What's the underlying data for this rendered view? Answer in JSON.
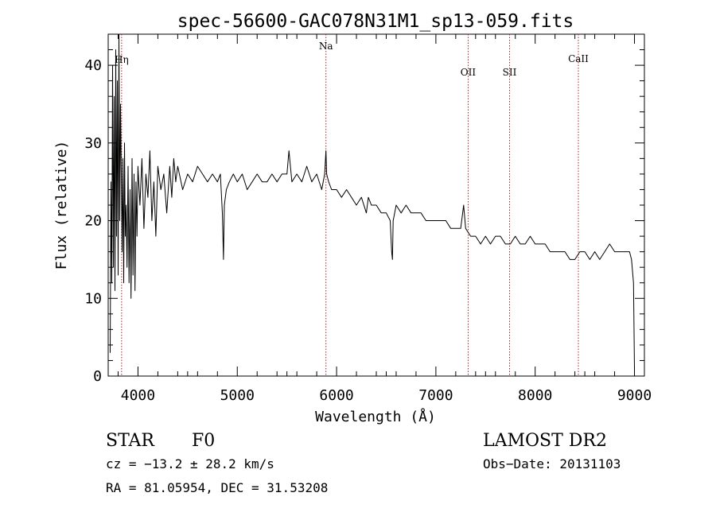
{
  "chart_data": {
    "type": "line",
    "title": "spec-56600-GAC078N31M1_sp13-059.fits",
    "xlabel": "Wavelength (Å)",
    "ylabel": "Flux (relative)",
    "xlim": [
      3700,
      9100
    ],
    "ylim": [
      0,
      44
    ],
    "x_ticks": [
      4000,
      5000,
      6000,
      7000,
      8000,
      9000
    ],
    "y_ticks": [
      0,
      10,
      20,
      30,
      40
    ],
    "grid": false,
    "line_color": "#000000",
    "marker_color": "#b22222",
    "lines": [
      {
        "label": "Hη",
        "x": 3835
      },
      {
        "label": "Na",
        "x": 5893
      },
      {
        "label": "OII",
        "x": 7325
      },
      {
        "label": "SII",
        "x": 7742
      },
      {
        "label": "CaII",
        "x": 8435
      }
    ],
    "series": [
      {
        "x": [
          3720,
          3728,
          3736,
          3744,
          3752,
          3760,
          3768,
          3776,
          3784,
          3792,
          3800,
          3808,
          3816,
          3824,
          3832,
          3840,
          3848,
          3856,
          3864,
          3872,
          3880,
          3890,
          3900,
          3910,
          3920,
          3930,
          3940,
          3950,
          3960,
          3970,
          3980,
          3990,
          4000,
          4020,
          4040,
          4060,
          4080,
          4100,
          4120,
          4140,
          4160,
          4180,
          4200,
          4230,
          4260,
          4290,
          4320,
          4340,
          4360,
          4380,
          4400,
          4450,
          4500,
          4550,
          4600,
          4650,
          4700,
          4750,
          4800,
          4830,
          4850,
          4861,
          4870,
          4890,
          4920,
          4960,
          5000,
          5050,
          5100,
          5150,
          5200,
          5250,
          5300,
          5350,
          5400,
          5450,
          5500,
          5520,
          5550,
          5600,
          5650,
          5700,
          5750,
          5800,
          5850,
          5880,
          5893,
          5900,
          5920,
          5950,
          6000,
          6050,
          6100,
          6150,
          6200,
          6250,
          6300,
          6320,
          6350,
          6400,
          6450,
          6500,
          6540,
          6555,
          6563,
          6570,
          6600,
          6650,
          6700,
          6750,
          6800,
          6850,
          6900,
          6950,
          7000,
          7050,
          7100,
          7150,
          7200,
          7250,
          7280,
          7300,
          7350,
          7400,
          7450,
          7500,
          7550,
          7600,
          7650,
          7700,
          7750,
          7800,
          7850,
          7900,
          7950,
          8000,
          8050,
          8100,
          8150,
          8200,
          8250,
          8300,
          8350,
          8400,
          8450,
          8500,
          8550,
          8600,
          8650,
          8700,
          8750,
          8800,
          8850,
          8900,
          8950,
          8970,
          8990,
          9000
        ],
        "y": [
          3,
          25,
          12,
          40,
          14,
          36,
          11,
          42,
          18,
          38,
          13,
          44,
          20,
          35,
          26,
          16,
          28,
          12,
          30,
          18,
          22,
          14,
          27,
          12,
          24,
          10,
          28,
          13,
          26,
          11,
          25,
          18,
          27,
          22,
          28,
          19,
          26,
          23,
          29,
          20,
          25,
          18,
          27,
          24,
          26,
          21,
          27,
          23,
          28,
          25,
          27,
          24,
          26,
          25,
          27,
          26,
          25,
          26,
          25,
          26,
          21,
          15,
          22,
          24,
          25,
          26,
          25,
          26,
          24,
          25,
          26,
          25,
          25,
          26,
          25,
          26,
          26,
          29,
          25,
          26,
          25,
          27,
          25,
          26,
          24,
          26,
          29,
          26,
          25,
          24,
          24,
          23,
          24,
          23,
          22,
          23,
          21,
          23,
          22,
          22,
          21,
          21,
          20,
          16,
          15,
          20,
          22,
          21,
          22,
          21,
          21,
          21,
          20,
          20,
          20,
          20,
          20,
          19,
          19,
          19,
          22,
          19,
          18,
          18,
          17,
          18,
          17,
          18,
          18,
          17,
          17,
          18,
          17,
          17,
          18,
          17,
          17,
          17,
          16,
          16,
          16,
          16,
          15,
          15,
          16,
          16,
          15,
          16,
          15,
          16,
          17,
          16,
          16,
          16,
          16,
          15,
          12,
          1
        ]
      }
    ]
  },
  "info": {
    "object_class": "STAR",
    "subclass": "F0",
    "survey": "LAMOST DR2",
    "cz": "cz = −13.2 ± 28.2 km/s",
    "obs_date": "Obs−Date: 20131103",
    "coords": "RA =  81.05954, DEC =  31.53208"
  }
}
